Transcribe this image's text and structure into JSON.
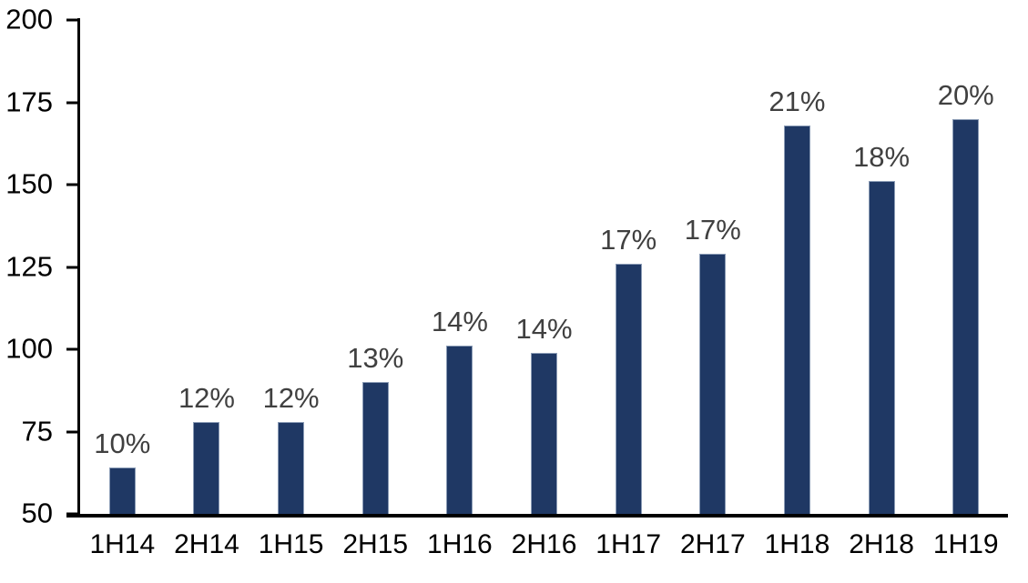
{
  "chart_data": {
    "type": "bar",
    "title": "",
    "xlabel": "",
    "ylabel": "",
    "categories": [
      "1H14",
      "2H14",
      "1H15",
      "2H15",
      "1H16",
      "2H16",
      "1H17",
      "2H17",
      "1H18",
      "2H18",
      "1H19"
    ],
    "values": [
      64,
      78,
      78,
      90,
      101,
      99,
      126,
      129,
      168,
      151,
      170
    ],
    "bar_labels": [
      "10%",
      "12%",
      "12%",
      "13%",
      "14%",
      "14%",
      "17%",
      "17%",
      "21%",
      "18%",
      "20%"
    ],
    "ylim": [
      50,
      200
    ],
    "yticks": [
      50,
      75,
      100,
      125,
      150,
      175,
      200
    ],
    "grid": false,
    "legend": false,
    "colors": {
      "bar_fill": "#1F3864",
      "bar_border": "#8A9BB5",
      "bar_label_text": "#404040",
      "axis_text": "#000000",
      "axis_line": "#000000",
      "background": "#FFFFFF"
    }
  }
}
